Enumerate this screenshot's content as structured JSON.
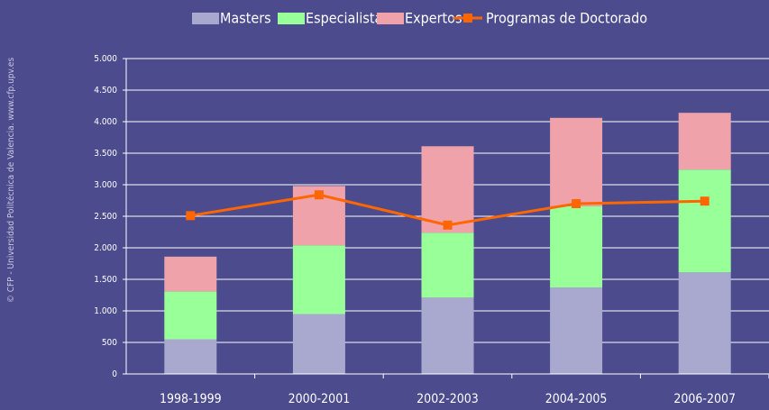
{
  "chart_data": {
    "type": "bar_line",
    "source": "© CFP - Universidad Politécnica de Valencia.  www.cfp.upv.es",
    "categories": [
      "1998-1999",
      "2000-2001",
      "2002-2003",
      "2004-2005",
      "2006-2007"
    ],
    "series": [
      {
        "name": "Masters",
        "color": "#a9a9cf",
        "values": [
          550,
          950,
          1210,
          1370,
          1610
        ]
      },
      {
        "name": "Especialistas",
        "color": "#99ff99",
        "values": [
          760,
          1090,
          1030,
          1290,
          1630
        ]
      },
      {
        "name": "Expertos",
        "color": "#f0a2aa",
        "values": [
          550,
          940,
          1370,
          1400,
          900
        ]
      },
      {
        "name": "Programas de Doctorado",
        "color": "#ff6600",
        "type": "line",
        "values": [
          2510,
          2840,
          2360,
          2700,
          2740
        ]
      }
    ],
    "ylim": [
      0,
      5000
    ],
    "yticks": [
      0,
      500,
      {
        "value": 1000,
        "label": "1.000"
      },
      {
        "value": 1500,
        "label": "1.500"
      },
      {
        "value": 2000,
        "label": "2.000"
      },
      {
        "value": 2500,
        "label": "2.500"
      },
      {
        "value": 3000,
        "label": "3.000"
      },
      {
        "value": 3500,
        "label": "3.500"
      },
      {
        "value": 4000,
        "label": "4.000"
      },
      {
        "value": 4500,
        "label": "4.500"
      },
      {
        "value": 5000,
        "label": "5.000"
      }
    ],
    "grid": true,
    "legend": "top"
  }
}
